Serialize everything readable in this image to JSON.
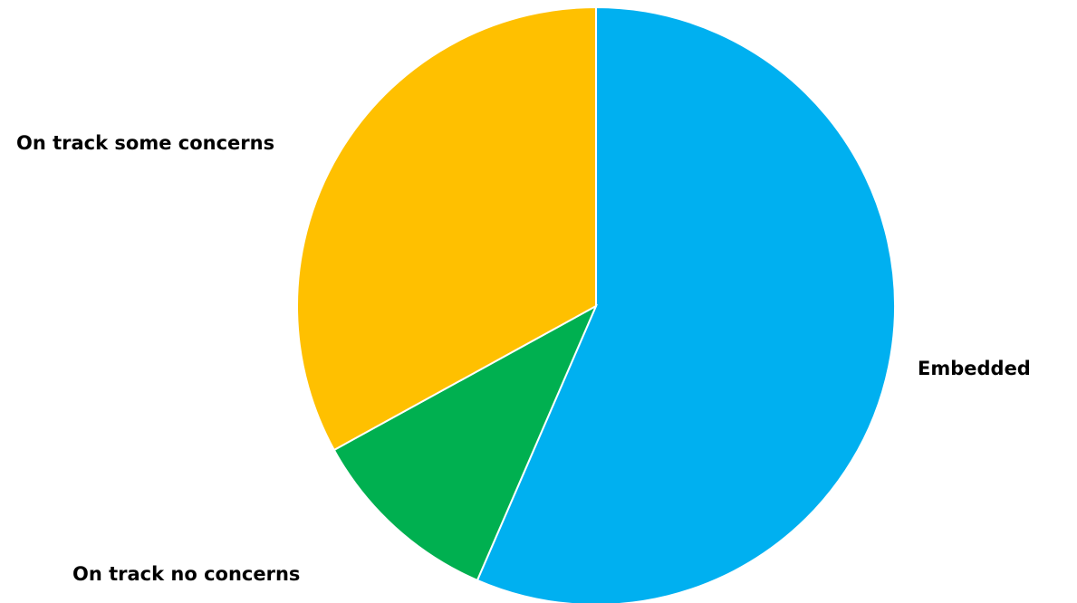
{
  "chart_data": {
    "type": "pie",
    "title": "",
    "categories": [
      "Embedded",
      "On track no concerns",
      "On track some concerns"
    ],
    "values": [
      56.5,
      10.5,
      33.0
    ],
    "colors": [
      "#00B0F0",
      "#00B050",
      "#FFC000"
    ],
    "start_angle_deg": 0,
    "direction": "clockwise",
    "legend": "none",
    "data_labels": "category names outside slices"
  }
}
